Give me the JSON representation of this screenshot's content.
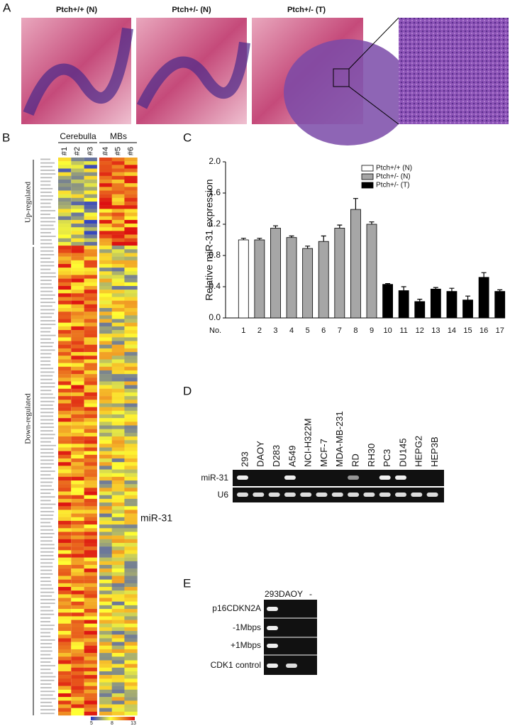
{
  "panel_a": {
    "label": "A",
    "images": [
      "Ptch+/+ (N)",
      "Ptch+/- (N)",
      "Ptch+/- (T)"
    ]
  },
  "panel_b": {
    "label": "B",
    "groups": [
      "Cerebulla",
      "MBs"
    ],
    "samples": [
      "#1",
      "#2",
      "#3",
      "#4",
      "#5",
      "#6"
    ],
    "sections": [
      "Up-regulated",
      "Down-regulated"
    ],
    "highlight": "miR-31",
    "scale_labels": [
      "5",
      "8",
      "13"
    ]
  },
  "panel_c": {
    "label": "C"
  },
  "chart_data": {
    "type": "bar",
    "ylabel": "Relative miR-31 expression",
    "xlabel": "No.",
    "categories": [
      "1",
      "2",
      "3",
      "4",
      "5",
      "6",
      "7",
      "8",
      "9",
      "10",
      "11",
      "12",
      "13",
      "14",
      "15",
      "16",
      "17"
    ],
    "series": [
      {
        "name": "Ptch+/+ (N)",
        "color": "#ffffff",
        "values": [
          1.0,
          null,
          null,
          null,
          null,
          null,
          null,
          null,
          null,
          null,
          null,
          null,
          null,
          null,
          null,
          null,
          null
        ],
        "errors": [
          0.02,
          null,
          null,
          null,
          null,
          null,
          null,
          null,
          null,
          null,
          null,
          null,
          null,
          null,
          null,
          null,
          null
        ]
      },
      {
        "name": "Ptch+/- (N)",
        "color": "#a6a6a6",
        "values": [
          null,
          1.0,
          1.15,
          1.03,
          0.89,
          0.98,
          1.15,
          1.39,
          1.2,
          null,
          null,
          null,
          null,
          null,
          null,
          null,
          null
        ],
        "errors": [
          null,
          0.02,
          0.03,
          0.02,
          0.03,
          0.07,
          0.04,
          0.14,
          0.03,
          null,
          null,
          null,
          null,
          null,
          null,
          null,
          null
        ]
      },
      {
        "name": "Ptch+/- (T)",
        "color": "#000000",
        "values": [
          null,
          null,
          null,
          null,
          null,
          null,
          null,
          null,
          null,
          0.43,
          0.35,
          0.21,
          0.37,
          0.34,
          0.23,
          0.52,
          0.34
        ],
        "errors": [
          null,
          null,
          null,
          null,
          null,
          null,
          null,
          null,
          null,
          0.01,
          0.05,
          0.03,
          0.02,
          0.04,
          0.05,
          0.06,
          0.02
        ]
      }
    ],
    "ylim": [
      0,
      2.0
    ],
    "yticks": [
      {
        "value": 0,
        "label": "0.0"
      },
      {
        "value": 0.4,
        "label": "0.4"
      },
      {
        "value": 0.8,
        "label": "0.8"
      },
      {
        "value": 1.2,
        "label": "1.2"
      },
      {
        "value": 1.6,
        "label": "1.6"
      },
      {
        "value": 2.0,
        "label": "2.0"
      }
    ],
    "legend": "top-right"
  },
  "panel_d": {
    "label": "D",
    "lanes": [
      "293",
      "DAOY",
      "D283",
      "A549",
      "NCI-H322M",
      "MCF-7",
      "MDA-MB-231",
      "RD",
      "RH30",
      "PC3",
      "DU145",
      "HEPG2",
      "HEP3B"
    ],
    "rows": [
      "miR-31",
      "U6"
    ]
  },
  "panel_e": {
    "label": "E",
    "lanes": [
      "293",
      "DAOY",
      "-"
    ],
    "rows": [
      "p16CDKN2A",
      "-1Mbps",
      "+1Mbps",
      "CDK1 control"
    ]
  }
}
